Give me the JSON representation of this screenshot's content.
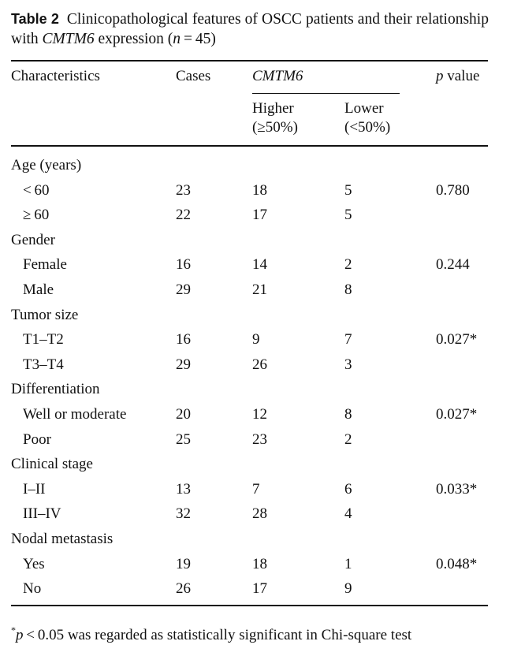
{
  "caption": {
    "label": "Table 2",
    "text_before_gene": "Clinicopathological features of OSCC patients and their relationship with ",
    "gene": "CMTM6",
    "text_after_gene": " expression (",
    "n_symbol": "n",
    "n_value": " = 45)"
  },
  "header": {
    "characteristics": "Characteristics",
    "cases": "Cases",
    "gene": "CMTM6",
    "p_symbol": "p",
    "p_word": " value",
    "higher": "Higher",
    "higher_range": "(≥50%)",
    "lower": "Lower",
    "lower_range": "(<50%)"
  },
  "groups": [
    {
      "name": "Age (years)",
      "rows": [
        {
          "label": "< 60",
          "cases": "23",
          "higher": "18",
          "lower": "5",
          "p": "0.780"
        },
        {
          "label": "≥ 60",
          "cases": "22",
          "higher": "17",
          "lower": "5",
          "p": ""
        }
      ]
    },
    {
      "name": "Gender",
      "rows": [
        {
          "label": "Female",
          "cases": "16",
          "higher": "14",
          "lower": "2",
          "p": "0.244"
        },
        {
          "label": "Male",
          "cases": "29",
          "higher": "21",
          "lower": "8",
          "p": ""
        }
      ]
    },
    {
      "name": "Tumor size",
      "rows": [
        {
          "label": "T1–T2",
          "cases": "16",
          "higher": "9",
          "lower": "7",
          "p": "0.027*"
        },
        {
          "label": "T3–T4",
          "cases": "29",
          "higher": "26",
          "lower": "3",
          "p": ""
        }
      ]
    },
    {
      "name": "Differentiation",
      "rows": [
        {
          "label": "Well or moderate",
          "cases": "20",
          "higher": "12",
          "lower": "8",
          "p": "0.027*"
        },
        {
          "label": "Poor",
          "cases": "25",
          "higher": "23",
          "lower": "2",
          "p": ""
        }
      ]
    },
    {
      "name": "Clinical stage",
      "rows": [
        {
          "label": "I–II",
          "cases": "13",
          "higher": "7",
          "lower": "6",
          "p": "0.033*"
        },
        {
          "label": "III–IV",
          "cases": "32",
          "higher": "28",
          "lower": "4",
          "p": ""
        }
      ]
    },
    {
      "name": "Nodal metastasis",
      "rows": [
        {
          "label": "Yes",
          "cases": "19",
          "higher": "18",
          "lower": "1",
          "p": "0.048*"
        },
        {
          "label": "No",
          "cases": "26",
          "higher": "17",
          "lower": "9",
          "p": ""
        }
      ]
    }
  ],
  "footnote": {
    "marker": "*",
    "p_symbol": "p",
    "text": " < 0.05 was regarded as statistically significant in Chi-square test"
  }
}
